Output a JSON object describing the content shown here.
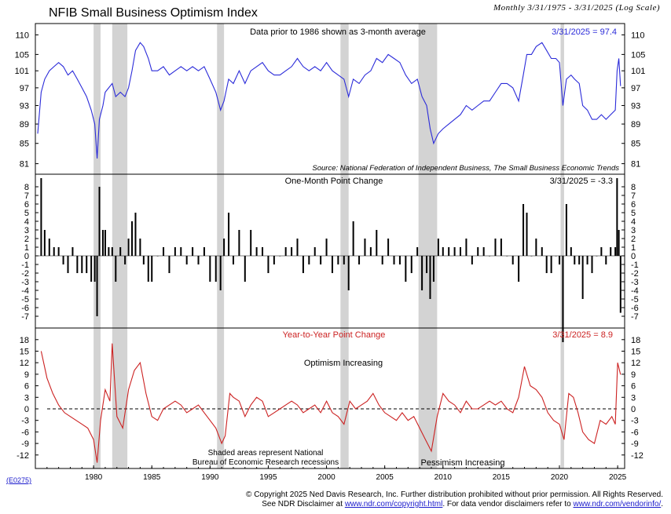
{
  "header": {
    "title": "NFIB Small Business Optimism Index",
    "subtitle": "Monthly 3/31/1975 - 3/31/2025 (Log Scale)"
  },
  "colors": {
    "panel1_line": "#2b2bd9",
    "panel2_bar": "#000000",
    "panel3_line": "#cc2222",
    "recession": "#d3d3d3"
  },
  "x_ticks": [
    "1980",
    "1985",
    "1990",
    "1995",
    "2000",
    "2005",
    "2010",
    "2015",
    "2020",
    "2025"
  ],
  "recessions": [
    [
      1980.0,
      1980.6
    ],
    [
      1981.6,
      1982.9
    ],
    [
      1990.6,
      1991.2
    ],
    [
      2001.2,
      2001.9
    ],
    [
      2007.9,
      2009.5
    ],
    [
      2020.1,
      2020.4
    ]
  ],
  "chart_data": [
    {
      "type": "line",
      "title": "NFIB Small Business Optimism Index",
      "note": "Data prior to 1986 shown as 3-month average",
      "value_label": "3/31/2025 = 97.4",
      "source": "Source: National Federation of Independent Business, The Small Business Economic Trends",
      "scale": "log",
      "ylim": [
        79,
        113
      ],
      "yticks": [
        "110",
        "105",
        "101",
        "97",
        "93",
        "89",
        "85",
        "81"
      ],
      "x": [
        1975.2,
        1975.5,
        1975.8,
        1976.2,
        1976.6,
        1977.0,
        1977.4,
        1977.8,
        1978.2,
        1978.6,
        1979.0,
        1979.4,
        1979.8,
        1980.1,
        1980.3,
        1980.5,
        1980.8,
        1981.0,
        1981.3,
        1981.6,
        1981.9,
        1982.3,
        1982.7,
        1983.0,
        1983.3,
        1983.6,
        1984.0,
        1984.3,
        1984.7,
        1985.0,
        1985.5,
        1986.0,
        1986.5,
        1987.0,
        1987.5,
        1988.0,
        1988.5,
        1989.0,
        1989.5,
        1990.0,
        1990.5,
        1990.9,
        1991.2,
        1991.6,
        1992.0,
        1992.5,
        1993.0,
        1993.5,
        1994.0,
        1994.5,
        1995.0,
        1995.5,
        1996.0,
        1996.5,
        1997.0,
        1997.5,
        1998.0,
        1998.5,
        1999.0,
        1999.5,
        2000.0,
        2000.5,
        2001.0,
        2001.5,
        2001.9,
        2002.3,
        2002.8,
        2003.3,
        2003.8,
        2004.3,
        2004.8,
        2005.3,
        2005.8,
        2006.3,
        2006.8,
        2007.3,
        2007.8,
        2008.2,
        2008.6,
        2008.9,
        2009.2,
        2009.6,
        2010.0,
        2010.5,
        2011.0,
        2011.5,
        2012.0,
        2012.5,
        2013.0,
        2013.5,
        2014.0,
        2014.5,
        2015.0,
        2015.5,
        2016.0,
        2016.5,
        2016.9,
        2017.2,
        2017.6,
        2018.0,
        2018.5,
        2018.9,
        2019.3,
        2019.7,
        2020.0,
        2020.3,
        2020.6,
        2021.0,
        2021.3,
        2021.7,
        2022.0,
        2022.4,
        2022.8,
        2023.2,
        2023.6,
        2024.0,
        2024.4,
        2024.8,
        2024.95,
        2025.1,
        2025.25
      ],
      "y": [
        87,
        96,
        99,
        101,
        102,
        103,
        102,
        100,
        101,
        99,
        97,
        95,
        92,
        89,
        82,
        90,
        93,
        96,
        97,
        98,
        95,
        96,
        95,
        97,
        101,
        106,
        108,
        107,
        104,
        101,
        101,
        102,
        100,
        101,
        102,
        101,
        102,
        101,
        102,
        99,
        96,
        92,
        94,
        99,
        98,
        101,
        98,
        101,
        102,
        103,
        101,
        100,
        100,
        101,
        102,
        104,
        102,
        101,
        102,
        101,
        103,
        101,
        100,
        99,
        95,
        99,
        98,
        100,
        101,
        104,
        103,
        105,
        104,
        103,
        100,
        98,
        99,
        95,
        93,
        88,
        85,
        87,
        88,
        89,
        90,
        91,
        93,
        92,
        93,
        94,
        94,
        96,
        98,
        98,
        97,
        94,
        100,
        105,
        105,
        107,
        108,
        106,
        104,
        104,
        103,
        93,
        99,
        100,
        99,
        98,
        93,
        92,
        90,
        90,
        91,
        90,
        91,
        92,
        101,
        104,
        97.4
      ]
    },
    {
      "type": "bar",
      "title": "One-Month Point Change",
      "value_label": "3/31/2025 = -3.3",
      "ylim": [
        -8,
        8
      ],
      "yticks": [
        "8",
        "7",
        "6",
        "5",
        "4",
        "3",
        "2",
        "1",
        "0",
        "-1",
        "-2",
        "-3",
        "-4",
        "-5",
        "-6",
        "-7"
      ]
    },
    {
      "type": "line",
      "title": "Year-to-Year Point Change",
      "value_label": "3/31/2025 = 8.9",
      "annotations": [
        "Optimism Increasing",
        "Pessimism Increasing",
        "Shaded areas represent National",
        "Bureau of Economic Research recessions"
      ],
      "ylim": [
        -15,
        19
      ],
      "yticks": [
        "18",
        "15",
        "12",
        "9",
        "6",
        "3",
        "0",
        "-3",
        "-6",
        "-9",
        "-12"
      ],
      "x": [
        1975.5,
        1976.0,
        1976.5,
        1977.0,
        1977.5,
        1978.0,
        1978.5,
        1979.0,
        1979.5,
        1980.0,
        1980.3,
        1980.6,
        1981.0,
        1981.4,
        1981.6,
        1982.0,
        1982.5,
        1983.0,
        1983.5,
        1984.0,
        1984.5,
        1985.0,
        1985.5,
        1986.0,
        1986.5,
        1987.0,
        1987.5,
        1988.0,
        1988.5,
        1989.0,
        1989.5,
        1990.0,
        1990.5,
        1991.0,
        1991.3,
        1991.7,
        1992.0,
        1992.5,
        1993.0,
        1993.5,
        1994.0,
        1994.5,
        1995.0,
        1995.5,
        1996.0,
        1996.5,
        1997.0,
        1997.5,
        1998.0,
        1998.5,
        1999.0,
        1999.5,
        2000.0,
        2000.5,
        2001.0,
        2001.5,
        2002.0,
        2002.5,
        2003.0,
        2003.5,
        2004.0,
        2004.5,
        2005.0,
        2005.5,
        2006.0,
        2006.5,
        2007.0,
        2007.5,
        2008.0,
        2008.5,
        2009.0,
        2009.5,
        2010.0,
        2010.5,
        2011.0,
        2011.5,
        2012.0,
        2012.5,
        2013.0,
        2013.5,
        2014.0,
        2014.5,
        2015.0,
        2015.5,
        2016.0,
        2016.5,
        2017.0,
        2017.5,
        2018.0,
        2018.5,
        2019.0,
        2019.5,
        2020.0,
        2020.4,
        2020.8,
        2021.2,
        2021.6,
        2022.0,
        2022.5,
        2023.0,
        2023.5,
        2024.0,
        2024.5,
        2024.8,
        2025.0,
        2025.25
      ],
      "y": [
        15,
        8,
        4,
        1,
        -1,
        -2,
        -3,
        -4,
        -5,
        -8,
        -14,
        -3,
        5,
        2,
        17,
        -2,
        -5,
        5,
        10,
        12,
        4,
        -2,
        -3,
        0,
        1,
        2,
        1,
        -1,
        0,
        1,
        -1,
        -3,
        -5,
        -9,
        -7,
        4,
        3,
        2,
        -2,
        1,
        3,
        2,
        -2,
        -1,
        0,
        1,
        2,
        1,
        -1,
        0,
        1,
        -1,
        2,
        -1,
        -2,
        -4,
        2,
        0,
        1,
        2,
        4,
        1,
        -1,
        -2,
        -3,
        -1,
        -3,
        -2,
        -5,
        -8,
        -11,
        -2,
        4,
        2,
        1,
        -1,
        2,
        0,
        0,
        1,
        2,
        1,
        2,
        0,
        -1,
        3,
        11,
        6,
        5,
        3,
        -1,
        -3,
        -4,
        -8,
        4,
        3,
        -1,
        -6,
        -8,
        -9,
        -3,
        -4,
        -2,
        -4,
        12,
        8.9
      ]
    }
  ],
  "footer": {
    "code": "(E0275)",
    "copyright": "© Copyright 2025 Ned Davis Research, Inc.  Further distribution prohibited without prior permission.  All Rights Reserved.",
    "disclaimer_prefix": "See NDR Disclaimer at ",
    "disclaimer_link": "www.ndr.com/copyright.html",
    "disclaimer_mid": ". For data vendor disclaimers refer to ",
    "vendor_link": "www.ndr.com/vendorinfo/",
    "disclaimer_suffix": "."
  }
}
